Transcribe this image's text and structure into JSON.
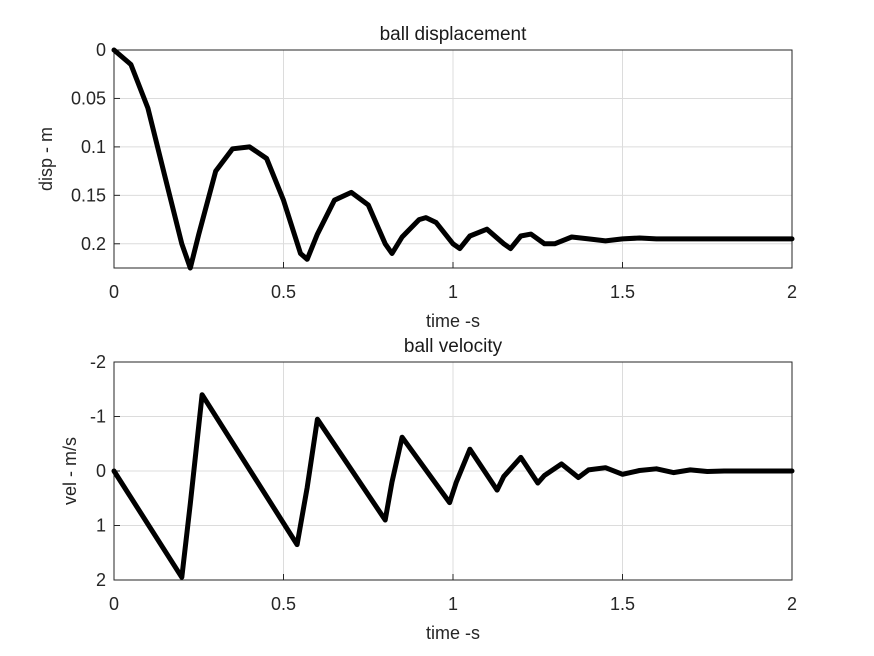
{
  "chart_data": [
    {
      "type": "line",
      "title": "ball displacement",
      "xlabel": "time -s",
      "ylabel": "disp - m",
      "xlim": [
        0,
        2
      ],
      "ylim": [
        0,
        0.225
      ],
      "y_reversed": true,
      "grid": true,
      "xticks": [
        "0",
        "0.5",
        "1",
        "1.5",
        "2"
      ],
      "yticks": [
        "0",
        "0.05",
        "0.1",
        "0.15",
        "0.2"
      ],
      "series": [
        {
          "color": "#000000",
          "x": [
            0,
            0.05,
            0.1,
            0.15,
            0.2,
            0.225,
            0.25,
            0.3,
            0.35,
            0.4,
            0.45,
            0.5,
            0.55,
            0.57,
            0.6,
            0.65,
            0.7,
            0.75,
            0.8,
            0.82,
            0.85,
            0.9,
            0.92,
            0.95,
            1.0,
            1.02,
            1.05,
            1.1,
            1.15,
            1.17,
            1.2,
            1.23,
            1.27,
            1.3,
            1.35,
            1.4,
            1.45,
            1.5,
            1.55,
            1.6,
            1.7,
            1.8,
            1.9,
            2.0
          ],
          "y": [
            0,
            0.015,
            0.06,
            0.13,
            0.2,
            0.225,
            0.19,
            0.125,
            0.102,
            0.1,
            0.112,
            0.155,
            0.21,
            0.216,
            0.19,
            0.155,
            0.147,
            0.16,
            0.2,
            0.21,
            0.193,
            0.175,
            0.173,
            0.178,
            0.2,
            0.205,
            0.192,
            0.185,
            0.2,
            0.205,
            0.192,
            0.19,
            0.2,
            0.2,
            0.193,
            0.195,
            0.197,
            0.195,
            0.194,
            0.195,
            0.195,
            0.195,
            0.195,
            0.195
          ]
        }
      ]
    },
    {
      "type": "line",
      "title": "ball velocity",
      "xlabel": "time -s",
      "ylabel": "vel - m/s",
      "xlim": [
        0,
        2
      ],
      "ylim": [
        -2,
        2
      ],
      "y_reversed": true,
      "grid": true,
      "xticks": [
        "0",
        "0.5",
        "1",
        "1.5",
        "2"
      ],
      "yticks": [
        "-2",
        "-1",
        "0",
        "1",
        "2"
      ],
      "series": [
        {
          "color": "#000000",
          "x": [
            0,
            0.2,
            0.225,
            0.26,
            0.54,
            0.57,
            0.6,
            0.8,
            0.82,
            0.85,
            0.99,
            1.01,
            1.05,
            1.13,
            1.15,
            1.2,
            1.25,
            1.27,
            1.32,
            1.37,
            1.4,
            1.45,
            1.5,
            1.55,
            1.6,
            1.65,
            1.7,
            1.75,
            1.8,
            1.9,
            2.0
          ],
          "y": [
            0,
            1.95,
            0.6,
            -1.4,
            1.35,
            0.3,
            -0.95,
            0.9,
            0.2,
            -0.62,
            0.58,
            0.2,
            -0.4,
            0.35,
            0.1,
            -0.25,
            0.22,
            0.08,
            -0.13,
            0.12,
            -0.02,
            -0.06,
            0.06,
            -0.01,
            -0.04,
            0.03,
            -0.02,
            0.01,
            0,
            0,
            0
          ]
        }
      ]
    }
  ]
}
